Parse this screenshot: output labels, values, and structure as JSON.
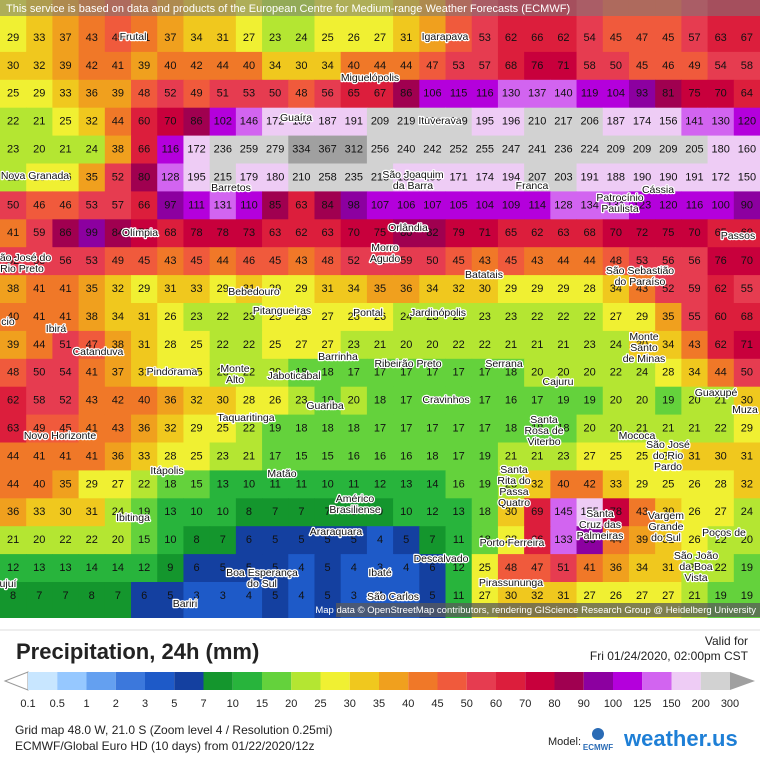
{
  "banner": "This service is based on data and products of the European Centre for Medium-range Weather Forecasts (ECMWF)",
  "grid": {
    "rows": [
      [
        29,
        33,
        37,
        43,
        45,
        41,
        37,
        34,
        31,
        27,
        23,
        24,
        25,
        26,
        27,
        31,
        36,
        45,
        53,
        62,
        66,
        62,
        54,
        45,
        47,
        45,
        57,
        63,
        67
      ],
      [
        30,
        32,
        39,
        42,
        41,
        39,
        40,
        42,
        44,
        40,
        34,
        30,
        34,
        40,
        44,
        44,
        47,
        53,
        57,
        68,
        76,
        71,
        58,
        50,
        45,
        46,
        49,
        54,
        58
      ],
      [
        25,
        29,
        33,
        36,
        39,
        48,
        52,
        49,
        51,
        53,
        50,
        48,
        56,
        65,
        67,
        86,
        106,
        115,
        116,
        130,
        137,
        140,
        119,
        104,
        93,
        81,
        75,
        70,
        64
      ],
      [
        22,
        21,
        25,
        32,
        44,
        60,
        70,
        86,
        102,
        146,
        172,
        188,
        187,
        191,
        209,
        219,
        220,
        209,
        195,
        196,
        210,
        217,
        206,
        187,
        174,
        156,
        141,
        130,
        120
      ],
      [
        23,
        20,
        21,
        24,
        38,
        66,
        116,
        172,
        236,
        259,
        279,
        334,
        367,
        312,
        256,
        240,
        242,
        252,
        255,
        247,
        241,
        236,
        224,
        209,
        209,
        209,
        205,
        180,
        160
      ],
      [
        22,
        26,
        26,
        35,
        52,
        80,
        128,
        195,
        215,
        179,
        180,
        210,
        258,
        235,
        213,
        186,
        166,
        171,
        174,
        194,
        207,
        203,
        191,
        188,
        190,
        190,
        191,
        172,
        150
      ],
      [
        50,
        46,
        46,
        53,
        57,
        66,
        97,
        111,
        131,
        110,
        85,
        63,
        84,
        98,
        107,
        106,
        107,
        105,
        104,
        109,
        114,
        128,
        134,
        131,
        123,
        120,
        116,
        100,
        90
      ],
      [
        41,
        59,
        86,
        99,
        84,
        70,
        68,
        78,
        78,
        73,
        63,
        62,
        63,
        70,
        75,
        80,
        82,
        79,
        71,
        65,
        62,
        63,
        68,
        70,
        72,
        75,
        70,
        65,
        60
      ],
      [
        52,
        55,
        56,
        53,
        49,
        45,
        43,
        45,
        44,
        46,
        45,
        43,
        48,
        52,
        56,
        59,
        50,
        45,
        43,
        45,
        43,
        44,
        44,
        48,
        53,
        56,
        56,
        76,
        70
      ],
      [
        38,
        41,
        41,
        35,
        32,
        29,
        31,
        33,
        29,
        31,
        29,
        29,
        31,
        34,
        35,
        36,
        34,
        32,
        30,
        29,
        29,
        29,
        28,
        34,
        43,
        52,
        59,
        62,
        55
      ],
      [
        40,
        41,
        41,
        38,
        34,
        31,
        26,
        23,
        22,
        23,
        25,
        25,
        27,
        28,
        26,
        24,
        23,
        23,
        23,
        23,
        22,
        22,
        22,
        27,
        29,
        35,
        55,
        60,
        68
      ],
      [
        39,
        44,
        51,
        47,
        38,
        31,
        28,
        25,
        22,
        22,
        25,
        27,
        27,
        23,
        21,
        20,
        20,
        22,
        22,
        21,
        21,
        21,
        23,
        24,
        30,
        34,
        43,
        62,
        71
      ],
      [
        48,
        50,
        54,
        41,
        37,
        31,
        27,
        25,
        23,
        22,
        20,
        18,
        18,
        17,
        17,
        17,
        17,
        17,
        17,
        18,
        20,
        20,
        20,
        22,
        24,
        28,
        34,
        44,
        50
      ],
      [
        62,
        58,
        52,
        43,
        42,
        40,
        36,
        32,
        30,
        28,
        26,
        23,
        19,
        20,
        18,
        17,
        16,
        16,
        17,
        16,
        17,
        19,
        19,
        20,
        20,
        19,
        20,
        21,
        30
      ],
      [
        63,
        49,
        45,
        41,
        43,
        36,
        32,
        29,
        25,
        22,
        19,
        18,
        18,
        18,
        17,
        17,
        17,
        17,
        17,
        18,
        18,
        18,
        20,
        20,
        21,
        21,
        21,
        22,
        29
      ],
      [
        44,
        41,
        41,
        41,
        36,
        33,
        28,
        25,
        23,
        21,
        17,
        15,
        15,
        16,
        16,
        16,
        18,
        17,
        19,
        21,
        21,
        23,
        27,
        25,
        25,
        28,
        31,
        30,
        31
      ],
      [
        44,
        40,
        35,
        29,
        27,
        22,
        18,
        15,
        13,
        10,
        11,
        11,
        10,
        11,
        12,
        13,
        14,
        16,
        19,
        23,
        32,
        40,
        42,
        33,
        29,
        25,
        26,
        28,
        32
      ],
      [
        36,
        33,
        30,
        31,
        24,
        19,
        13,
        10,
        10,
        8,
        7,
        7,
        7,
        8,
        9,
        10,
        12,
        13,
        18,
        30,
        69,
        145,
        155,
        78,
        43,
        30,
        26,
        27,
        24
      ],
      [
        21,
        20,
        22,
        22,
        20,
        15,
        10,
        8,
        7,
        6,
        5,
        5,
        5,
        5,
        4,
        5,
        7,
        11,
        18,
        28,
        66,
        133,
        96,
        44,
        39,
        32,
        26,
        22,
        20
      ],
      [
        12,
        13,
        13,
        14,
        14,
        12,
        9,
        6,
        5,
        5,
        5,
        4,
        5,
        4,
        3,
        4,
        6,
        12,
        25,
        48,
        47,
        51,
        41,
        36,
        34,
        31,
        24,
        22,
        19
      ],
      [
        8,
        7,
        7,
        8,
        7,
        6,
        5,
        3,
        3,
        4,
        5,
        4,
        5,
        3,
        4,
        3,
        5,
        11,
        27,
        30,
        32,
        31,
        27,
        26,
        27,
        27,
        21,
        19,
        19
      ]
    ]
  },
  "cities": [
    [
      "Frutal"
    ],
    [
      "Igarapava"
    ],
    [
      "Miguelópolis"
    ],
    [
      "Guaíra"
    ],
    [
      "Ituverava"
    ],
    [
      "Nova Granada"
    ],
    [
      "Barretos"
    ],
    [
      "São Joaquim",
      "da Barra"
    ],
    [
      "Franca"
    ],
    [
      "Patrocínio",
      "Paulista"
    ],
    [
      "Cássia"
    ],
    [
      "Olímpia"
    ],
    [
      "Orlândia"
    ],
    [
      "Passos"
    ],
    [
      "São José do",
      "Rio Preto"
    ],
    [
      "Morro",
      "Agudo"
    ],
    [
      "Batatais"
    ],
    [
      "São Sebastião",
      "do Paraíso"
    ],
    [
      "Bebedouro"
    ],
    [
      "Pitangueiras"
    ],
    [
      "Pontal"
    ],
    [
      "Jardinópolis"
    ],
    [
      "Ibirá"
    ],
    [
      "Monte",
      "Santo",
      "de Minas"
    ],
    [
      "Catanduva"
    ],
    [
      "Barrinha"
    ],
    [
      "Ribeirão Preto"
    ],
    [
      "Serrana"
    ],
    [
      "Pindorama"
    ],
    [
      "Monte",
      "Alto"
    ],
    [
      "Jaboticabal"
    ],
    [
      "Cajuru"
    ],
    [
      "Guaxupé"
    ],
    [
      "Muza"
    ],
    [
      "Taquaritinga"
    ],
    [
      "Guariba"
    ],
    [
      "Cravinhos"
    ],
    [
      "Santa",
      "Rosa de",
      "Viterbo"
    ],
    [
      "Mococa"
    ],
    [
      "São José",
      "do Rio",
      "Pardo"
    ],
    [
      "Novo Horizonte"
    ],
    [
      "Itápolis"
    ],
    [
      "Matão"
    ],
    [
      "Santa",
      "Rita do",
      "Passa",
      "Quatro"
    ],
    [
      "Américo",
      "Brasiliense"
    ],
    [
      "Ibitinga"
    ],
    [
      "Santa",
      "Cruz das",
      "Palmeiras"
    ],
    [
      "Vargem",
      "Grande",
      "do Sul"
    ],
    [
      "Poços de"
    ],
    [
      "Araraquara"
    ],
    [
      "Porto Ferreira"
    ],
    [
      "Boa Esperança",
      "do Sul"
    ],
    [
      "Ibaté"
    ],
    [
      "Descalvado"
    ],
    [
      "São João",
      "da Boa",
      "Vista"
    ],
    [
      "Pirassununga"
    ],
    [
      "Bariri"
    ],
    [
      "São Carlos"
    ],
    [
      "ujuí"
    ],
    [
      "cio"
    ]
  ],
  "attribution": "Map data © OpenStreetMap contributors, rendering GIScience Research Group @ Heidelberg University",
  "panel": {
    "title": "Precipitation, 24h (mm)",
    "valid_label": "Valid for",
    "valid_time": "Fri 01/24/2020, 02:00pm CST"
  },
  "legend": {
    "levels": [
      0.1,
      0.5,
      1,
      2,
      3,
      5,
      7,
      10,
      15,
      20,
      25,
      30,
      35,
      40,
      45,
      50,
      60,
      70,
      80,
      90,
      100,
      125,
      150,
      200,
      300
    ],
    "colors": [
      "#ffffff",
      "#c8e6ff",
      "#96c8ff",
      "#64a0f0",
      "#3c78dc",
      "#1e5ac8",
      "#1440a0",
      "#14962d",
      "#28b43c",
      "#64d23c",
      "#b4e632",
      "#f0f032",
      "#f0c81e",
      "#f0a01e",
      "#f07828",
      "#f05a3c",
      "#e63c50",
      "#dc1e3c",
      "#c8003c",
      "#a00050",
      "#8c00a0",
      "#b400dc",
      "#d264f0",
      "#eeccf5",
      "#d2d2d2",
      "#a0a0a0"
    ]
  },
  "footer": {
    "line1": "Grid map 48.0 W, 21.0 S (Zoom level 4 / Resolution 0.25mi)",
    "line2": "ECMWF/Global Euro HD (10 days) from 01/22/2020/12z",
    "model_label": "Model:",
    "model_logo": "ECMWF",
    "brand": "weather.us"
  }
}
